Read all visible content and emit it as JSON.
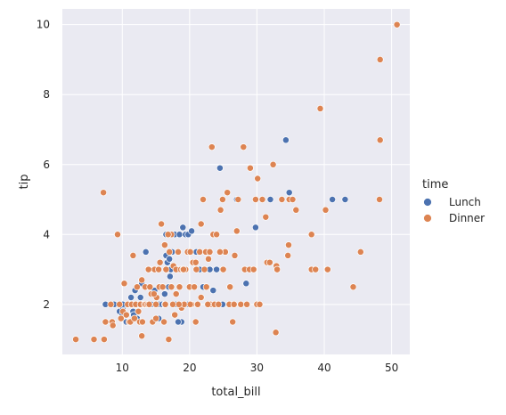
{
  "chart_data": {
    "type": "scatter",
    "title": "",
    "xlabel": "total_bill",
    "ylabel": "tip",
    "xlim": [
      1.1,
      52.7
    ],
    "ylim": [
      0.57,
      10.45
    ],
    "xticks": [
      10,
      20,
      30,
      40,
      50
    ],
    "yticks": [
      2,
      4,
      6,
      8,
      10
    ],
    "grid": true,
    "legend": {
      "title": "time",
      "placement": "right"
    },
    "colors": {
      "background": "#EAEAF2",
      "grid": "#FFFFFF"
    },
    "series": [
      {
        "name": "Lunch",
        "color": "#4C72B0",
        "points": [
          [
            7.5,
            2.0
          ],
          [
            8.5,
            1.5
          ],
          [
            8.8,
            2.0
          ],
          [
            9.6,
            1.8
          ],
          [
            10.0,
            1.7
          ],
          [
            10.1,
            1.9
          ],
          [
            10.3,
            2.0
          ],
          [
            10.6,
            1.5
          ],
          [
            11.0,
            2.0
          ],
          [
            11.3,
            2.2
          ],
          [
            11.6,
            1.8
          ],
          [
            11.9,
            2.4
          ],
          [
            12.0,
            2.0
          ],
          [
            12.2,
            1.6
          ],
          [
            12.5,
            2.0
          ],
          [
            12.7,
            2.2
          ],
          [
            12.9,
            2.6
          ],
          [
            13.2,
            2.0
          ],
          [
            13.5,
            3.5
          ],
          [
            13.8,
            2.0
          ],
          [
            14.5,
            2.0
          ],
          [
            14.8,
            2.4
          ],
          [
            15.4,
            1.6
          ],
          [
            15.5,
            2.0
          ],
          [
            16.0,
            2.5
          ],
          [
            16.3,
            2.3
          ],
          [
            16.5,
            4.0
          ],
          [
            16.5,
            3.4
          ],
          [
            16.7,
            3.2
          ],
          [
            17.0,
            3.3
          ],
          [
            17.4,
            3.5
          ],
          [
            17.8,
            4.0
          ],
          [
            17.9,
            2.0
          ],
          [
            18.3,
            3.0
          ],
          [
            18.5,
            4.0
          ],
          [
            18.8,
            1.5
          ],
          [
            19.0,
            4.2
          ],
          [
            19.4,
            4.0
          ],
          [
            19.8,
            4.0
          ],
          [
            20.3,
            4.1
          ],
          [
            21.0,
            3.5
          ],
          [
            21.5,
            3.0
          ],
          [
            22.0,
            2.5
          ],
          [
            23.0,
            3.0
          ],
          [
            23.5,
            2.4
          ],
          [
            24.0,
            3.0
          ],
          [
            24.5,
            5.9
          ],
          [
            27.0,
            5.0
          ],
          [
            28.4,
            2.6
          ],
          [
            29.8,
            4.2
          ],
          [
            32.0,
            5.0
          ],
          [
            34.3,
            6.7
          ],
          [
            34.8,
            5.2
          ],
          [
            41.2,
            5.0
          ],
          [
            43.1,
            5.0
          ],
          [
            18.3,
            1.5
          ],
          [
            12.4,
            1.8
          ],
          [
            17.2,
            3.0
          ],
          [
            19.8,
            2.0
          ],
          [
            14.3,
            2.0
          ],
          [
            15.9,
            2.0
          ],
          [
            16.3,
            2.0
          ],
          [
            24.9,
            2.0
          ],
          [
            13.0,
            2.0
          ],
          [
            11.7,
            1.7
          ],
          [
            10.1,
            2.0
          ],
          [
            17.1,
            2.8
          ],
          [
            16.9,
            2.5
          ]
        ]
      },
      {
        "name": "Dinner",
        "color": "#DD8452",
        "points": [
          [
            3.1,
            1.0
          ],
          [
            5.8,
            1.0
          ],
          [
            7.2,
            5.2
          ],
          [
            7.3,
            1.0
          ],
          [
            7.5,
            1.5
          ],
          [
            8.3,
            2.0
          ],
          [
            8.5,
            1.5
          ],
          [
            8.6,
            1.4
          ],
          [
            9.3,
            4.0
          ],
          [
            9.6,
            2.0
          ],
          [
            9.8,
            1.6
          ],
          [
            10.1,
            1.8
          ],
          [
            10.3,
            2.6
          ],
          [
            10.6,
            1.7
          ],
          [
            10.8,
            2.0
          ],
          [
            11.0,
            1.5
          ],
          [
            11.2,
            1.5
          ],
          [
            11.4,
            2.0
          ],
          [
            11.6,
            3.4
          ],
          [
            11.8,
            1.6
          ],
          [
            12.0,
            2.0
          ],
          [
            12.2,
            2.5
          ],
          [
            12.4,
            1.8
          ],
          [
            12.6,
            1.5
          ],
          [
            12.7,
            2.0
          ],
          [
            12.9,
            2.7
          ],
          [
            12.9,
            1.1
          ],
          [
            13.0,
            1.5
          ],
          [
            13.3,
            2.0
          ],
          [
            13.4,
            2.5
          ],
          [
            13.5,
            2.0
          ],
          [
            13.8,
            2.0
          ],
          [
            14.0,
            3.0
          ],
          [
            14.1,
            2.5
          ],
          [
            14.3,
            2.3
          ],
          [
            14.5,
            1.5
          ],
          [
            14.8,
            3.0
          ],
          [
            15.0,
            2.0
          ],
          [
            15.0,
            1.6
          ],
          [
            15.1,
            2.2
          ],
          [
            15.4,
            3.0
          ],
          [
            15.5,
            2.5
          ],
          [
            15.6,
            3.2
          ],
          [
            15.8,
            4.3
          ],
          [
            16.0,
            2.5
          ],
          [
            16.2,
            1.5
          ],
          [
            16.3,
            3.7
          ],
          [
            16.5,
            3.0
          ],
          [
            16.9,
            1.0
          ],
          [
            17.0,
            3.5
          ],
          [
            17.3,
            2.5
          ],
          [
            17.5,
            2.0
          ],
          [
            17.6,
            3.1
          ],
          [
            17.8,
            1.7
          ],
          [
            18.0,
            3.0
          ],
          [
            18.0,
            2.3
          ],
          [
            18.3,
            3.5
          ],
          [
            18.5,
            2.5
          ],
          [
            18.7,
            3.0
          ],
          [
            18.8,
            1.9
          ],
          [
            19.0,
            3.0
          ],
          [
            19.2,
            2.0
          ],
          [
            19.4,
            3.0
          ],
          [
            19.7,
            3.5
          ],
          [
            20.0,
            2.5
          ],
          [
            20.1,
            3.5
          ],
          [
            20.3,
            2.0
          ],
          [
            20.5,
            3.2
          ],
          [
            20.7,
            2.5
          ],
          [
            20.9,
            3.2
          ],
          [
            21.0,
            3.0
          ],
          [
            21.2,
            2.0
          ],
          [
            21.5,
            3.5
          ],
          [
            21.7,
            4.3
          ],
          [
            22.0,
            5.0
          ],
          [
            22.2,
            3.0
          ],
          [
            22.4,
            3.5
          ],
          [
            22.8,
            3.3
          ],
          [
            23.0,
            3.5
          ],
          [
            23.1,
            2.0
          ],
          [
            23.3,
            6.5
          ],
          [
            23.5,
            4.0
          ],
          [
            23.7,
            2.0
          ],
          [
            24.0,
            4.0
          ],
          [
            24.3,
            2.0
          ],
          [
            24.6,
            4.7
          ],
          [
            24.9,
            5.0
          ],
          [
            25.0,
            3.0
          ],
          [
            25.3,
            3.5
          ],
          [
            25.6,
            5.2
          ],
          [
            26.0,
            2.5
          ],
          [
            26.4,
            1.5
          ],
          [
            26.7,
            3.4
          ],
          [
            27.0,
            4.1
          ],
          [
            27.2,
            5.0
          ],
          [
            27.6,
            2.0
          ],
          [
            28.0,
            6.5
          ],
          [
            28.2,
            3.0
          ],
          [
            28.5,
            2.0
          ],
          [
            28.9,
            3.0
          ],
          [
            29.0,
            5.9
          ],
          [
            29.5,
            3.0
          ],
          [
            29.8,
            5.0
          ],
          [
            30.0,
            2.0
          ],
          [
            30.1,
            5.6
          ],
          [
            30.4,
            2.0
          ],
          [
            30.8,
            5.0
          ],
          [
            31.3,
            4.5
          ],
          [
            31.5,
            3.2
          ],
          [
            32.4,
            6.0
          ],
          [
            32.8,
            1.2
          ],
          [
            32.9,
            3.1
          ],
          [
            33.0,
            3.0
          ],
          [
            33.7,
            5.0
          ],
          [
            34.6,
            3.4
          ],
          [
            34.8,
            5.0
          ],
          [
            35.3,
            5.0
          ],
          [
            35.8,
            4.7
          ],
          [
            38.1,
            4.0
          ],
          [
            38.1,
            3.0
          ],
          [
            38.7,
            3.0
          ],
          [
            39.4,
            7.6
          ],
          [
            40.2,
            4.7
          ],
          [
            40.5,
            3.0
          ],
          [
            44.3,
            2.5
          ],
          [
            45.4,
            3.5
          ],
          [
            48.2,
            5.0
          ],
          [
            48.3,
            9.0
          ],
          [
            48.3,
            6.7
          ],
          [
            50.8,
            10.0
          ],
          [
            34.7,
            3.7
          ],
          [
            31.9,
            3.2
          ],
          [
            25.9,
            2.0
          ],
          [
            24.5,
            3.5
          ],
          [
            20.9,
            1.5
          ],
          [
            22.7,
            2.0
          ],
          [
            26.6,
            2.0
          ],
          [
            20.1,
            2.0
          ],
          [
            13.9,
            3.0
          ],
          [
            17.3,
            4.0
          ],
          [
            18.4,
            2.0
          ],
          [
            19.1,
            3.0
          ],
          [
            21.7,
            2.2
          ],
          [
            16.8,
            4.0
          ],
          [
            14.7,
            2.3
          ],
          [
            22.5,
            2.5
          ],
          [
            16.4,
            2.0
          ],
          [
            14.0,
            2.0
          ]
        ]
      }
    ]
  }
}
